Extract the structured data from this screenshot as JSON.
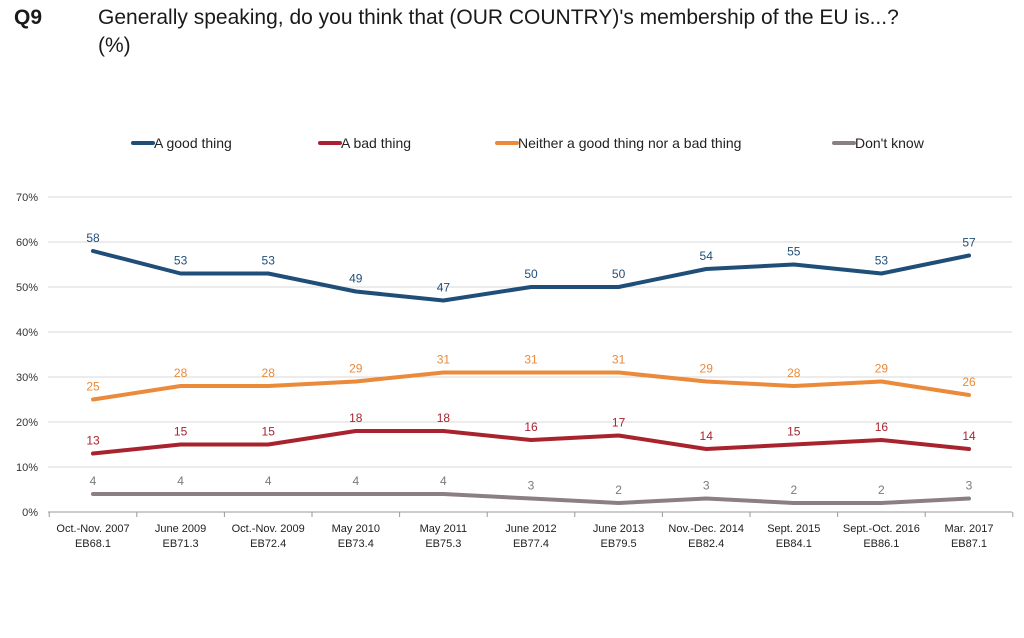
{
  "question": {
    "number": "Q9",
    "title_line1": "Generally speaking, do you think that (OUR COUNTRY)'s membership of the EU is...?",
    "title_line2": "(%)"
  },
  "chart_data": {
    "type": "line",
    "categories": [
      [
        "Oct.-Nov. 2007",
        "EB68.1"
      ],
      [
        "June 2009",
        "EB71.3"
      ],
      [
        "Oct.-Nov. 2009",
        "EB72.4"
      ],
      [
        "May 2010",
        "EB73.4"
      ],
      [
        "May 2011",
        "EB75.3"
      ],
      [
        "June 2012",
        "EB77.4"
      ],
      [
        "June 2013",
        "EB79.5"
      ],
      [
        "Nov.-Dec. 2014",
        "EB82.4"
      ],
      [
        "Sept. 2015",
        "EB84.1"
      ],
      [
        "Sept.-Oct. 2016",
        "EB86.1"
      ],
      [
        "Mar. 2017",
        "EB87.1"
      ]
    ],
    "series": [
      {
        "name": "A good thing",
        "color": "#1f4e79",
        "values": [
          58,
          53,
          53,
          49,
          47,
          50,
          50,
          54,
          55,
          53,
          57
        ]
      },
      {
        "name": "A bad thing",
        "color": "#a8232e",
        "values": [
          13,
          15,
          15,
          18,
          18,
          16,
          17,
          14,
          15,
          16,
          14
        ]
      },
      {
        "name": "Neither a good thing nor a bad thing",
        "color": "#ea8a3a",
        "values": [
          25,
          28,
          28,
          29,
          31,
          31,
          31,
          29,
          28,
          29,
          26
        ]
      },
      {
        "name": "Don't know",
        "color": "#8c7f82",
        "values": [
          4,
          4,
          4,
          4,
          4,
          3,
          2,
          3,
          2,
          2,
          3
        ]
      }
    ],
    "label_colors": [
      "#1f4e79",
      "#a8232e",
      "#ea8a3a",
      "#7a7a7a"
    ],
    "ylim": [
      0,
      70
    ],
    "yticks": [
      0,
      10,
      20,
      30,
      40,
      50,
      60,
      70
    ],
    "ytick_suffix": "%",
    "grid": true,
    "legend_position": "top"
  }
}
